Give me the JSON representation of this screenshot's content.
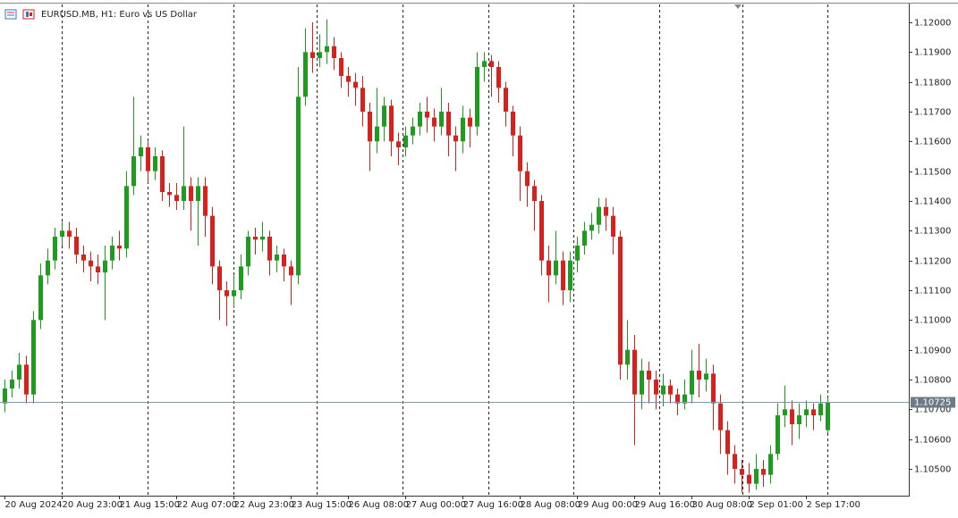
{
  "chart_data": {
    "type": "candlestick",
    "title": "EURUSD.MB, H1:  Euro vs US Dollar",
    "up_color": "#1e9c1e",
    "down_color": "#d8211d",
    "xlim": [
      -0.6,
      126.4
    ],
    "ylim": [
      1.10416,
      1.1206
    ],
    "yticks": [
      {
        "value": 1.105,
        "label": "1.10500"
      },
      {
        "value": 1.106,
        "label": "1.10600"
      },
      {
        "value": 1.107,
        "label": "1.10700"
      },
      {
        "value": 1.108,
        "label": "1.10800"
      },
      {
        "value": 1.109,
        "label": "1.10900"
      },
      {
        "value": 1.11,
        "label": "1.11000"
      },
      {
        "value": 1.111,
        "label": "1.11100"
      },
      {
        "value": 1.112,
        "label": "1.11200"
      },
      {
        "value": 1.113,
        "label": "1.11300"
      },
      {
        "value": 1.114,
        "label": "1.11400"
      },
      {
        "value": 1.115,
        "label": "1.11500"
      },
      {
        "value": 1.116,
        "label": "1.11600"
      },
      {
        "value": 1.117,
        "label": "1.11700"
      },
      {
        "value": 1.118,
        "label": "1.11800"
      },
      {
        "value": 1.119,
        "label": "1.11900"
      },
      {
        "value": 1.12,
        "label": "1.12000"
      }
    ],
    "xticks": [
      {
        "value": 0,
        "label": "20 Aug 2024"
      },
      {
        "value": 8,
        "label": "20 Aug 23:00"
      },
      {
        "value": 16,
        "label": "21 Aug 15:00"
      },
      {
        "value": 24,
        "label": "22 Aug 07:00"
      },
      {
        "value": 32,
        "label": "22 Aug 23:00"
      },
      {
        "value": 40,
        "label": "23 Aug 15:00"
      },
      {
        "value": 48,
        "label": "26 Aug 08:00"
      },
      {
        "value": 56,
        "label": "27 Aug 00:00"
      },
      {
        "value": 64,
        "label": "27 Aug 16:00"
      },
      {
        "value": 72,
        "label": "28 Aug 08:00"
      },
      {
        "value": 80,
        "label": "29 Aug 00:00"
      },
      {
        "value": 88,
        "label": "29 Aug 16:00"
      },
      {
        "value": 96,
        "label": "30 Aug 08:00"
      },
      {
        "value": 104,
        "label": "2 Sep 01:00"
      },
      {
        "value": 112,
        "label": "2 Sep 17:00"
      }
    ],
    "day_separators": [
      8,
      20,
      32,
      43.6,
      55.6,
      67.6,
      79.5,
      91.5,
      103.1,
      115
    ],
    "current_price": {
      "value": 1.10725,
      "label": "1.10725"
    },
    "open": [
      1.1072,
      1.1077,
      1.108,
      1.1085,
      1.1075,
      1.11,
      1.1115,
      1.112,
      1.1128,
      1.113,
      1.1128,
      1.1122,
      1.112,
      1.1118,
      1.1116,
      1.112,
      1.1125,
      1.1124,
      1.1145,
      1.1155,
      1.1158,
      1.115,
      1.1155,
      1.1143,
      1.1142,
      1.114,
      1.1145,
      1.114,
      1.1145,
      1.1135,
      1.1118,
      1.111,
      1.1108,
      1.111,
      1.1118,
      1.1128,
      1.1127,
      1.1128,
      1.112,
      1.1122,
      1.1118,
      1.1115,
      1.1175,
      1.119,
      1.1188,
      1.119,
      1.1192,
      1.1188,
      1.1182,
      1.118,
      1.1178,
      1.117,
      1.116,
      1.1165,
      1.1172,
      1.116,
      1.1158,
      1.1162,
      1.1165,
      1.117,
      1.1168,
      1.1165,
      1.117,
      1.1162,
      1.116,
      1.1168,
      1.1165,
      1.1185,
      1.1187,
      1.1185,
      1.1178,
      1.117,
      1.1162,
      1.115,
      1.1145,
      1.114,
      1.112,
      1.1115,
      1.112,
      1.111,
      1.112,
      1.1125,
      1.113,
      1.1132,
      1.1138,
      1.1135,
      1.1128,
      1.1085,
      1.109,
      1.1075,
      1.1083,
      1.108,
      1.1075,
      1.1078,
      1.1075,
      1.1072,
      1.1075,
      1.1083,
      1.108,
      1.1082,
      1.1072,
      1.1063,
      1.1055,
      1.105,
      1.1048,
      1.1045,
      1.105,
      1.1048,
      1.1055,
      1.1068,
      1.107,
      1.1065,
      1.1068,
      1.107,
      1.1068,
      1.1063
    ],
    "high": [
      1.108,
      1.1083,
      1.1089,
      1.1088,
      1.1103,
      1.1119,
      1.1124,
      1.1131,
      1.1133,
      1.1133,
      1.1131,
      1.1125,
      1.1123,
      1.1122,
      1.1125,
      1.1128,
      1.113,
      1.115,
      1.1175,
      1.1162,
      1.116,
      1.1158,
      1.1157,
      1.1146,
      1.1146,
      1.1165,
      1.1148,
      1.1148,
      1.1148,
      1.1138,
      1.112,
      1.1113,
      1.1115,
      1.1122,
      1.113,
      1.1131,
      1.1133,
      1.113,
      1.1125,
      1.1124,
      1.112,
      1.1185,
      1.1198,
      1.12,
      1.1196,
      1.1201,
      1.1195,
      1.119,
      1.1185,
      1.1183,
      1.1182,
      1.1173,
      1.1178,
      1.1175,
      1.1174,
      1.1163,
      1.1165,
      1.1168,
      1.1173,
      1.1175,
      1.1171,
      1.1178,
      1.1173,
      1.1165,
      1.1172,
      1.1171,
      1.119,
      1.119,
      1.1189,
      1.1187,
      1.118,
      1.1172,
      1.1165,
      1.1153,
      1.1147,
      1.1142,
      1.1125,
      1.113,
      1.1123,
      1.1123,
      1.1128,
      1.1133,
      1.1136,
      1.1141,
      1.1141,
      1.1138,
      1.113,
      1.11,
      1.1095,
      1.1087,
      1.1086,
      1.1083,
      1.1082,
      1.108,
      1.1077,
      1.108,
      1.109,
      1.1092,
      1.1087,
      1.1085,
      1.1075,
      1.1066,
      1.1058,
      1.1053,
      1.1052,
      1.1055,
      1.1053,
      1.1058,
      1.1072,
      1.1078,
      1.1073,
      1.1072,
      1.1073,
      1.1072,
      1.1075,
      1.1074
    ],
    "low": [
      1.1069,
      1.1074,
      1.1077,
      1.1072,
      1.1072,
      1.1097,
      1.1112,
      1.1117,
      1.1125,
      1.1124,
      1.1119,
      1.1116,
      1.1113,
      1.1112,
      1.11,
      1.1117,
      1.112,
      1.1121,
      1.1142,
      1.115,
      1.1146,
      1.1147,
      1.114,
      1.1138,
      1.1137,
      1.1137,
      1.113,
      1.1125,
      1.1128,
      1.1112,
      1.11,
      1.1098,
      1.1104,
      1.1107,
      1.1115,
      1.1122,
      1.1123,
      1.1115,
      1.1116,
      1.1113,
      1.1105,
      1.1112,
      1.1172,
      1.1183,
      1.1185,
      1.1186,
      1.1184,
      1.1178,
      1.1175,
      1.1172,
      1.1165,
      1.115,
      1.1156,
      1.116,
      1.1155,
      1.1152,
      1.1155,
      1.1159,
      1.1162,
      1.1163,
      1.116,
      1.1162,
      1.1155,
      1.115,
      1.1156,
      1.1158,
      1.1162,
      1.118,
      1.1175,
      1.1173,
      1.1165,
      1.1155,
      1.114,
      1.1138,
      1.113,
      1.1115,
      1.1106,
      1.1112,
      1.1105,
      1.1106,
      1.1116,
      1.1122,
      1.1127,
      1.1129,
      1.113,
      1.1122,
      1.108,
      1.108,
      1.1058,
      1.107,
      1.1072,
      1.107,
      1.1071,
      1.1072,
      1.1068,
      1.107,
      1.1072,
      1.1074,
      1.1076,
      1.1063,
      1.1055,
      1.1048,
      1.1045,
      1.1042,
      1.1042,
      1.1043,
      1.1044,
      1.1045,
      1.1053,
      1.1064,
      1.1058,
      1.106,
      1.1064,
      1.1063,
      1.1066,
      1.1062
    ],
    "close": [
      1.1077,
      1.108,
      1.1085,
      1.1075,
      1.11,
      1.1115,
      1.112,
      1.1128,
      1.113,
      1.1128,
      1.1122,
      1.112,
      1.1118,
      1.1116,
      1.112,
      1.1125,
      1.1124,
      1.1145,
      1.1155,
      1.1158,
      1.115,
      1.1155,
      1.1143,
      1.1142,
      1.114,
      1.1145,
      1.114,
      1.1145,
      1.1135,
      1.1118,
      1.111,
      1.1108,
      1.111,
      1.1118,
      1.1128,
      1.1127,
      1.1128,
      1.112,
      1.1122,
      1.1118,
      1.1115,
      1.1175,
      1.119,
      1.1188,
      1.119,
      1.1192,
      1.1188,
      1.1182,
      1.118,
      1.1178,
      1.117,
      1.116,
      1.1165,
      1.1172,
      1.116,
      1.1158,
      1.1162,
      1.1165,
      1.117,
      1.1168,
      1.1165,
      1.117,
      1.1162,
      1.116,
      1.1168,
      1.1165,
      1.1185,
      1.1187,
      1.1185,
      1.1178,
      1.117,
      1.1162,
      1.115,
      1.1145,
      1.114,
      1.112,
      1.1115,
      1.112,
      1.111,
      1.112,
      1.1125,
      1.113,
      1.1132,
      1.1138,
      1.1135,
      1.1128,
      1.1085,
      1.109,
      1.1075,
      1.1083,
      1.108,
      1.1075,
      1.1078,
      1.1075,
      1.1072,
      1.1075,
      1.1083,
      1.108,
      1.1082,
      1.1072,
      1.1063,
      1.1055,
      1.105,
      1.1048,
      1.1045,
      1.105,
      1.1048,
      1.1055,
      1.1068,
      1.107,
      1.1065,
      1.1068,
      1.107,
      1.1068,
      1.1072,
      1.10725
    ]
  }
}
